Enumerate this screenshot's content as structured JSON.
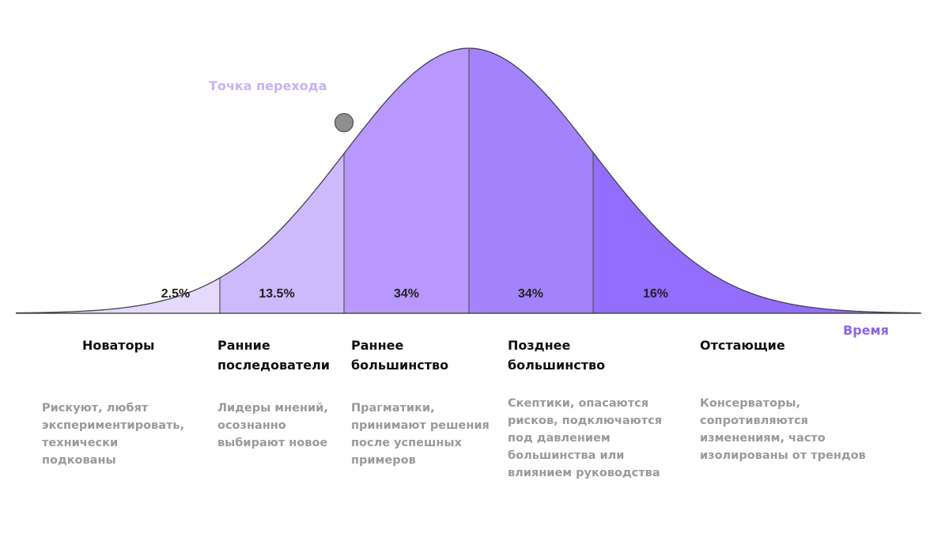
{
  "diagram": {
    "transition_label": "Точка перехода",
    "time_label": "Время",
    "colors": {
      "segment_1": "#e4dafb",
      "segment_2": "#cdbafb",
      "segment_3": "#b898fd",
      "segment_4": "#a283fd",
      "segment_5": "#936dfd",
      "transition_point": "#8f8f8f",
      "transition_label": "#c9b2f7",
      "time_label": "#8b63ec"
    },
    "segments": [
      {
        "percent": "2.5%",
        "title": "Новаторы",
        "description": "Рискуют, любят\nэкспериментировать,\nтехнически\nподкованы"
      },
      {
        "percent": "13.5%",
        "title": "Ранние\nпоследователи",
        "description": "Лидеры мнений,\nосознанно\nвыбирают новое"
      },
      {
        "percent": "34%",
        "title": "Раннее\nбольшинство",
        "description": "Прагматики,\nпринимают решения\nпосле успешных\nпримеров"
      },
      {
        "percent": "34%",
        "title": "Позднее\nбольшинство",
        "description": "Скептики, опасаются\nрисков, подключаются\nпод давлением\nбольшинства или\nвлиянием руководства"
      },
      {
        "percent": "16%",
        "title": "Отстающие",
        "description": "Консерваторы,\nсопротивляются\nизменениям, часто\nизолированы от трендов"
      }
    ]
  }
}
